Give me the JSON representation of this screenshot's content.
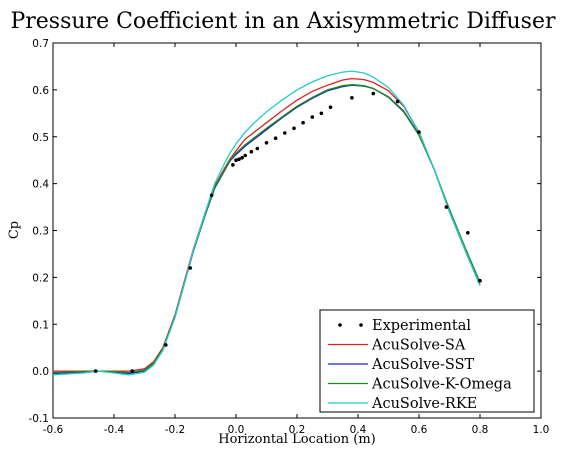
{
  "chart_data": {
    "type": "line",
    "title": "Pressure Coefficient in an Axisymmetric Diffuser",
    "xlabel": "Horizontal Location (m)",
    "ylabel": "Cp",
    "xlim": [
      -0.6,
      1.0
    ],
    "ylim": [
      -0.1,
      0.7
    ],
    "xticks": [
      "-0.6",
      "-0.4",
      "-0.2",
      "0.0",
      "0.2",
      "0.4",
      "0.6",
      "0.8",
      "1.0"
    ],
    "yticks": [
      "-0.1",
      "0.0",
      "0.1",
      "0.2",
      "0.3",
      "0.4",
      "0.5",
      "0.6",
      "0.7"
    ],
    "grid": false,
    "legend_position": "lower-right",
    "series": [
      {
        "name": "Experimental",
        "style": "markers",
        "color": "#000000",
        "x": [
          -0.46,
          -0.34,
          -0.23,
          -0.15,
          -0.08,
          -0.01,
          0.0,
          0.01,
          0.02,
          0.03,
          0.05,
          0.07,
          0.1,
          0.13,
          0.16,
          0.19,
          0.22,
          0.25,
          0.28,
          0.31,
          0.38,
          0.45,
          0.53,
          0.6,
          0.69,
          0.76,
          0.8
        ],
        "y": [
          0.0,
          0.0,
          0.056,
          0.22,
          0.375,
          0.44,
          0.45,
          0.452,
          0.455,
          0.46,
          0.468,
          0.475,
          0.487,
          0.497,
          0.508,
          0.518,
          0.53,
          0.542,
          0.55,
          0.563,
          0.583,
          0.592,
          0.575,
          0.51,
          0.35,
          0.295,
          0.193
        ]
      },
      {
        "name": "AcuSolve-SA",
        "style": "line",
        "color": "#dd2222",
        "x": [
          -0.6,
          -0.5,
          -0.45,
          -0.4,
          -0.35,
          -0.3,
          -0.27,
          -0.24,
          -0.2,
          -0.17,
          -0.14,
          -0.1,
          -0.07,
          -0.04,
          -0.02,
          0.0,
          0.03,
          0.06,
          0.1,
          0.15,
          0.2,
          0.25,
          0.3,
          0.35,
          0.38,
          0.42,
          0.45,
          0.5,
          0.55,
          0.6,
          0.65,
          0.7,
          0.75,
          0.8
        ],
        "y": [
          0.0,
          0.0,
          0.0,
          0.0,
          0.0,
          0.005,
          0.02,
          0.05,
          0.12,
          0.19,
          0.26,
          0.34,
          0.395,
          0.43,
          0.452,
          0.47,
          0.495,
          0.51,
          0.53,
          0.555,
          0.578,
          0.597,
          0.61,
          0.621,
          0.624,
          0.622,
          0.616,
          0.598,
          0.565,
          0.51,
          0.43,
          0.34,
          0.26,
          0.183
        ]
      },
      {
        "name": "AcuSolve-SST",
        "style": "line",
        "color": "#2222cc",
        "x": [
          -0.6,
          -0.5,
          -0.45,
          -0.4,
          -0.35,
          -0.3,
          -0.27,
          -0.24,
          -0.2,
          -0.17,
          -0.14,
          -0.1,
          -0.07,
          -0.04,
          -0.02,
          0.0,
          0.03,
          0.06,
          0.1,
          0.15,
          0.2,
          0.25,
          0.3,
          0.35,
          0.38,
          0.42,
          0.45,
          0.5,
          0.55,
          0.6,
          0.65,
          0.7,
          0.75,
          0.8
        ],
        "y": [
          -0.005,
          -0.002,
          0.0,
          -0.002,
          -0.005,
          0.0,
          0.015,
          0.045,
          0.115,
          0.185,
          0.255,
          0.335,
          0.39,
          0.425,
          0.448,
          0.462,
          0.48,
          0.495,
          0.515,
          0.54,
          0.563,
          0.582,
          0.598,
          0.607,
          0.61,
          0.608,
          0.603,
          0.585,
          0.555,
          0.505,
          0.43,
          0.34,
          0.26,
          0.183
        ]
      },
      {
        "name": "AcuSolve-K-Omega",
        "style": "line",
        "color": "#1a8c1a",
        "x": [
          -0.6,
          -0.5,
          -0.45,
          -0.4,
          -0.35,
          -0.3,
          -0.27,
          -0.24,
          -0.2,
          -0.17,
          -0.14,
          -0.1,
          -0.07,
          -0.04,
          -0.02,
          0.0,
          0.03,
          0.06,
          0.1,
          0.15,
          0.2,
          0.25,
          0.3,
          0.35,
          0.38,
          0.42,
          0.45,
          0.5,
          0.55,
          0.6,
          0.65,
          0.7,
          0.75,
          0.8
        ],
        "y": [
          -0.003,
          -0.001,
          0.0,
          -0.001,
          -0.003,
          0.002,
          0.017,
          0.047,
          0.117,
          0.187,
          0.257,
          0.337,
          0.392,
          0.427,
          0.45,
          0.465,
          0.483,
          0.498,
          0.518,
          0.542,
          0.565,
          0.584,
          0.6,
          0.609,
          0.611,
          0.609,
          0.603,
          0.584,
          0.553,
          0.503,
          0.43,
          0.345,
          0.265,
          0.19
        ]
      },
      {
        "name": "AcuSolve-RKE",
        "style": "line",
        "color": "#22cccc",
        "x": [
          -0.6,
          -0.5,
          -0.45,
          -0.4,
          -0.35,
          -0.3,
          -0.27,
          -0.24,
          -0.2,
          -0.17,
          -0.14,
          -0.1,
          -0.07,
          -0.04,
          -0.02,
          0.0,
          0.03,
          0.06,
          0.1,
          0.15,
          0.2,
          0.25,
          0.3,
          0.35,
          0.38,
          0.42,
          0.45,
          0.5,
          0.55,
          0.6,
          0.65,
          0.7,
          0.75,
          0.8
        ],
        "y": [
          -0.008,
          -0.004,
          0.0,
          -0.004,
          -0.008,
          -0.002,
          0.013,
          0.044,
          0.115,
          0.185,
          0.258,
          0.34,
          0.4,
          0.44,
          0.465,
          0.485,
          0.51,
          0.53,
          0.553,
          0.578,
          0.6,
          0.617,
          0.63,
          0.638,
          0.64,
          0.636,
          0.627,
          0.605,
          0.567,
          0.51,
          0.43,
          0.34,
          0.26,
          0.183
        ]
      }
    ]
  }
}
